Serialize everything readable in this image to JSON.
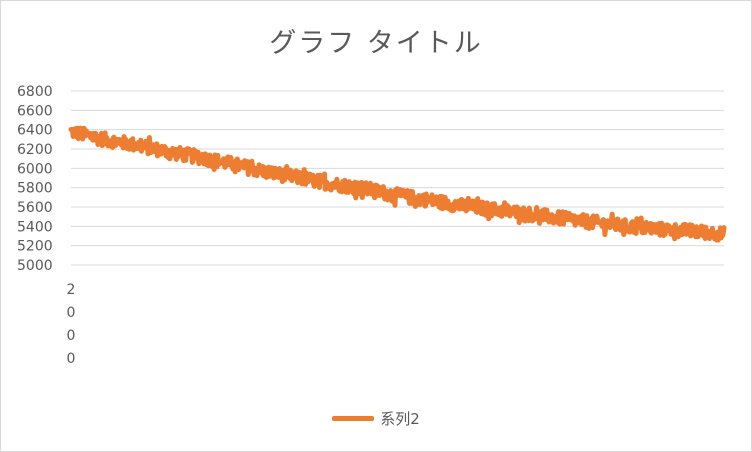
{
  "chart_data": {
    "type": "line",
    "title": "グラフ タイトル",
    "xlabel": "",
    "ylabel": "",
    "ylim": [
      5000,
      6800
    ],
    "y_ticks": [
      5000,
      5200,
      5400,
      5600,
      5800,
      6000,
      6200,
      6400,
      6600,
      6800
    ],
    "x_tick_labels": [
      "2",
      "0",
      "0",
      "0"
    ],
    "grid": true,
    "legend_position": "bottom",
    "series": [
      {
        "name": "系列2",
        "color": "#ED7D31",
        "trend": [
          [
            0,
            6380
          ],
          [
            0.05,
            6300
          ],
          [
            0.1,
            6240
          ],
          [
            0.15,
            6170
          ],
          [
            0.2,
            6110
          ],
          [
            0.25,
            6040
          ],
          [
            0.3,
            5960
          ],
          [
            0.35,
            5900
          ],
          [
            0.4,
            5840
          ],
          [
            0.45,
            5790
          ],
          [
            0.5,
            5720
          ],
          [
            0.55,
            5670
          ],
          [
            0.6,
            5610
          ],
          [
            0.65,
            5570
          ],
          [
            0.7,
            5530
          ],
          [
            0.75,
            5480
          ],
          [
            0.8,
            5440
          ],
          [
            0.85,
            5400
          ],
          [
            0.9,
            5370
          ],
          [
            0.95,
            5350
          ],
          [
            1,
            5320
          ]
        ],
        "noise_amplitude": 70,
        "point_count": 900
      }
    ]
  }
}
